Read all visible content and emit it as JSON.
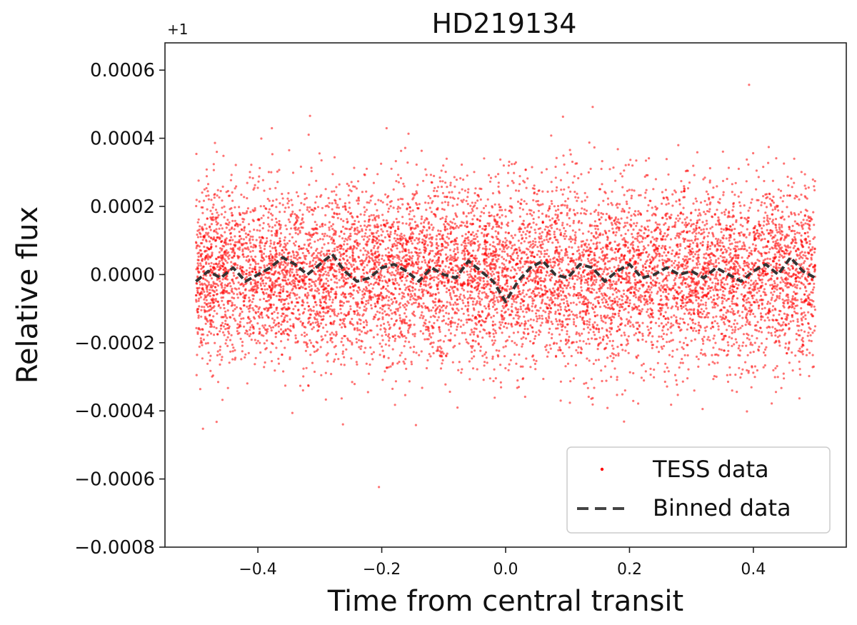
{
  "chart_data": {
    "type": "scatter",
    "title": "HD219134",
    "xlabel": "Time from central transit",
    "ylabel": "Relative flux",
    "offset_label": "+1",
    "xlim": [
      -0.55,
      0.55
    ],
    "ylim": [
      -0.0008,
      0.00068
    ],
    "x_ticks": [
      -0.4,
      -0.2,
      0.0,
      0.2,
      0.4
    ],
    "x_tick_labels": [
      "−0.4",
      "−0.2",
      "0.0",
      "0.2",
      "0.4"
    ],
    "y_ticks": [
      0.0006,
      0.0004,
      0.0002,
      0.0,
      -0.0002,
      -0.0004,
      -0.0006,
      -0.0008
    ],
    "y_tick_labels": [
      "0.0006",
      "0.0004",
      "0.0002",
      "0.0000",
      "−0.0002",
      "−0.0004",
      "−0.0006",
      "−0.0008"
    ],
    "grid": false,
    "legend_placement": "lower-right",
    "series": [
      {
        "name": "TESS data",
        "kind": "scatter",
        "color": "#ff0000",
        "x_range": [
          -0.5,
          0.5
        ],
        "mean": 0.0,
        "std": 0.00013
      },
      {
        "name": "Binned data",
        "kind": "dashed-line",
        "color": "#333333",
        "x": [
          -0.5,
          -0.48,
          -0.46,
          -0.44,
          -0.42,
          -0.4,
          -0.38,
          -0.36,
          -0.34,
          -0.32,
          -0.3,
          -0.28,
          -0.26,
          -0.24,
          -0.22,
          -0.2,
          -0.18,
          -0.16,
          -0.14,
          -0.12,
          -0.1,
          -0.08,
          -0.06,
          -0.04,
          -0.02,
          0.0,
          0.02,
          0.04,
          0.06,
          0.08,
          0.1,
          0.12,
          0.14,
          0.16,
          0.18,
          0.2,
          0.22,
          0.24,
          0.26,
          0.28,
          0.3,
          0.32,
          0.34,
          0.36,
          0.38,
          0.4,
          0.42,
          0.44,
          0.46,
          0.48,
          0.5
        ],
        "y": [
          -2e-05,
          1e-05,
          -1e-05,
          2e-05,
          -2e-05,
          0.0,
          2e-05,
          5e-05,
          3e-05,
          0.0,
          3e-05,
          6e-05,
          1e-05,
          -2e-05,
          -1e-05,
          2e-05,
          3e-05,
          1e-05,
          -2e-05,
          2e-05,
          0.0,
          -1e-05,
          4e-05,
          1e-05,
          -2e-05,
          -8e-05,
          -2e-05,
          2e-05,
          4e-05,
          0.0,
          -1e-05,
          3e-05,
          2e-05,
          -2e-05,
          1e-05,
          3e-05,
          -1e-05,
          0.0,
          2e-05,
          0.0,
          1e-05,
          -1e-05,
          2e-05,
          0.0,
          -2e-05,
          1e-05,
          3e-05,
          0.0,
          5e-05,
          1e-05,
          -1e-05
        ]
      }
    ]
  }
}
